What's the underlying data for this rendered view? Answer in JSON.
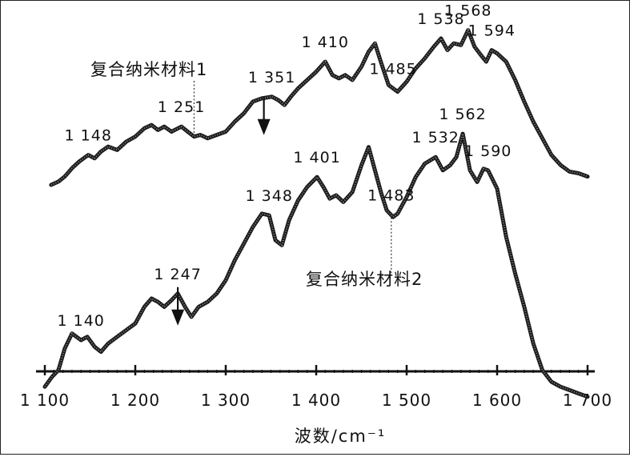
{
  "chart_data": {
    "type": "line",
    "title": "",
    "xlabel": "波数/cm⁻¹",
    "ylabel": "",
    "xlim": [
      1100,
      1700
    ],
    "x_ticks": [
      1100,
      1200,
      1300,
      1400,
      1500,
      1600,
      1700
    ],
    "x_tick_labels": [
      "1 100",
      "1 200",
      "1 300",
      "1 400",
      "1 500",
      "1 600",
      "1 700"
    ],
    "grid": false,
    "series": [
      {
        "name": "复合纳米材料1",
        "x": [
          1107,
          1115,
          1122,
          1130,
          1138,
          1148,
          1155,
          1162,
          1170,
          1180,
          1190,
          1200,
          1210,
          1218,
          1225,
          1232,
          1240,
          1251,
          1258,
          1265,
          1272,
          1280,
          1290,
          1300,
          1310,
          1320,
          1330,
          1340,
          1351,
          1358,
          1365,
          1372,
          1380,
          1390,
          1400,
          1410,
          1418,
          1425,
          1432,
          1440,
          1450,
          1458,
          1465,
          1472,
          1480,
          1490,
          1500,
          1510,
          1520,
          1530,
          1538,
          1545,
          1552,
          1560,
          1568,
          1575,
          1582,
          1588,
          1594,
          1600,
          1610,
          1620,
          1630,
          1640,
          1650,
          1660,
          1670,
          1680,
          1690,
          1700
        ],
        "y": [
          12,
          14,
          17,
          22,
          26,
          30,
          28,
          32,
          35,
          33,
          38,
          41,
          46,
          48,
          45,
          47,
          44,
          47,
          44,
          41,
          42,
          40,
          42,
          44,
          50,
          55,
          62,
          64,
          65,
          63,
          60,
          65,
          70,
          75,
          80,
          86,
          78,
          76,
          78,
          75,
          83,
          92,
          97,
          85,
          72,
          68,
          74,
          82,
          88,
          95,
          100,
          93,
          97,
          96,
          105,
          95,
          90,
          86,
          93,
          91,
          86,
          75,
          62,
          50,
          40,
          30,
          24,
          20,
          19,
          17
        ]
      },
      {
        "name": "复合纳米材料2",
        "x": [
          1100,
          1108,
          1115,
          1122,
          1130,
          1140,
          1147,
          1155,
          1162,
          1170,
          1180,
          1190,
          1200,
          1210,
          1218,
          1225,
          1232,
          1240,
          1247,
          1255,
          1262,
          1270,
          1280,
          1290,
          1300,
          1310,
          1320,
          1330,
          1340,
          1348,
          1355,
          1362,
          1370,
          1380,
          1390,
          1401,
          1408,
          1415,
          1422,
          1430,
          1440,
          1450,
          1458,
          1465,
          1472,
          1478,
          1485,
          1490,
          1500,
          1510,
          1520,
          1532,
          1540,
          1548,
          1555,
          1562,
          1570,
          1578,
          1585,
          1590,
          1600,
          1610,
          1620,
          1630,
          1640,
          1650,
          1660,
          1670,
          1680,
          1690,
          1700
        ],
        "y": [
          -78,
          -72,
          -68,
          -55,
          -46,
          -50,
          -48,
          -54,
          -57,
          -52,
          -48,
          -44,
          -40,
          -30,
          -25,
          -27,
          -30,
          -26,
          -22,
          -30,
          -36,
          -30,
          -27,
          -22,
          -14,
          -2,
          8,
          18,
          26,
          25,
          10,
          7,
          22,
          34,
          42,
          48,
          42,
          35,
          37,
          33,
          39,
          55,
          66,
          52,
          38,
          28,
          24,
          26,
          36,
          48,
          56,
          60,
          52,
          55,
          60,
          74,
          52,
          45,
          53,
          52,
          41,
          12,
          -10,
          -30,
          -52,
          -68,
          -75,
          -78,
          -80,
          -82,
          -84
        ]
      }
    ],
    "peak_labels": [
      {
        "series": 0,
        "x": 1148,
        "text": "1 148"
      },
      {
        "series": 0,
        "x": 1251,
        "text": "1 251"
      },
      {
        "series": 0,
        "x": 1351,
        "text": "1 351"
      },
      {
        "series": 0,
        "x": 1410,
        "text": "1 410"
      },
      {
        "series": 0,
        "x": 1485,
        "text": "1 485"
      },
      {
        "series": 0,
        "x": 1538,
        "text": "1 538"
      },
      {
        "series": 0,
        "x": 1568,
        "text": "1 568"
      },
      {
        "series": 0,
        "x": 1594,
        "text": "1 594"
      },
      {
        "series": 1,
        "x": 1140,
        "text": "1 140"
      },
      {
        "series": 1,
        "x": 1247,
        "text": "1 247"
      },
      {
        "series": 1,
        "x": 1348,
        "text": "1 348"
      },
      {
        "series": 1,
        "x": 1401,
        "text": "1 401"
      },
      {
        "series": 1,
        "x": 1483,
        "text": "1 483"
      },
      {
        "series": 1,
        "x": 1532,
        "text": "1 532"
      },
      {
        "series": 1,
        "x": 1562,
        "text": "1 562"
      },
      {
        "series": 1,
        "x": 1590,
        "text": "1 590"
      }
    ],
    "arrows_at": [
      1351,
      1247
    ],
    "colors": {
      "line": "#1a1a1a",
      "text": "#111111"
    }
  }
}
